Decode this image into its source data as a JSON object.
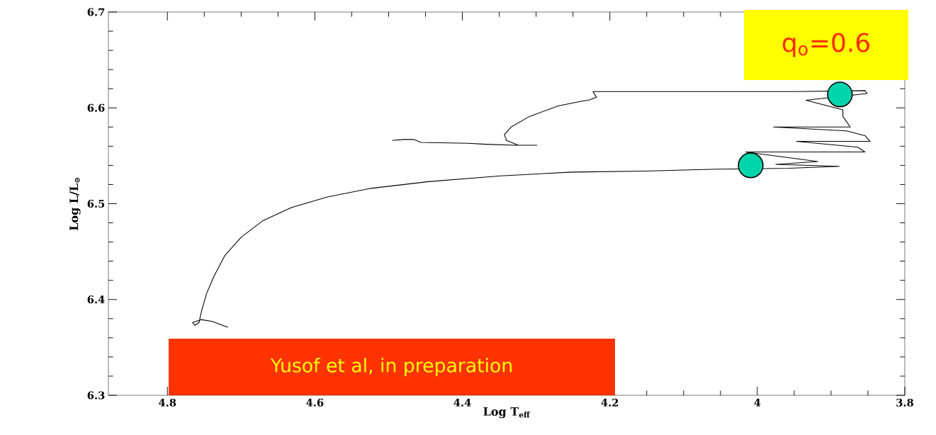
{
  "chart_data": {
    "type": "line",
    "xlabel": "Log T$_{eff}$",
    "ylabel": "Log L/L$_{⊙}$",
    "xlim": [
      4.88,
      3.8
    ],
    "ylim": [
      6.3,
      6.7
    ],
    "xticks": [
      4.8,
      4.6,
      4.4,
      4.2,
      4,
      3.8
    ],
    "yticks": [
      6.3,
      6.4,
      6.5,
      6.6,
      6.7
    ],
    "series": [
      {
        "color": "#000000",
        "x": [
          4.718,
          4.739,
          4.754,
          4.766,
          4.763,
          4.757,
          4.754,
          4.747,
          4.737,
          4.722,
          4.7,
          4.671,
          4.632,
          4.583,
          4.524,
          4.446,
          4.348,
          4.25,
          4.153,
          4.055,
          3.957,
          3.889,
          3.975,
          3.918,
          4.016,
          3.854,
          3.864,
          3.947,
          3.847,
          3.854,
          3.879,
          3.978,
          3.874,
          3.884,
          3.884,
          3.934,
          3.851,
          3.854,
          3.947,
          4.211,
          4.223,
          4.218,
          4.229,
          4.238,
          4.27,
          4.309,
          4.334,
          4.343,
          4.34,
          4.324,
          4.299,
          4.329,
          4.368,
          4.392,
          4.456,
          4.466,
          4.48,
          4.495
        ],
        "values": [
          6.371,
          6.377,
          6.379,
          6.376,
          6.373,
          6.376,
          6.387,
          6.406,
          6.424,
          6.446,
          6.465,
          6.482,
          6.496,
          6.507,
          6.516,
          6.523,
          6.529,
          6.533,
          6.534,
          6.536,
          6.537,
          6.539,
          6.541,
          6.544,
          6.554,
          6.554,
          6.559,
          6.565,
          6.565,
          6.571,
          6.576,
          6.58,
          6.58,
          6.591,
          6.598,
          6.608,
          6.615,
          6.618,
          6.617,
          6.617,
          6.617,
          6.611,
          6.608,
          6.607,
          6.602,
          6.591,
          6.58,
          6.572,
          6.566,
          6.561,
          6.561,
          6.561,
          6.562,
          6.563,
          6.564,
          6.567,
          6.567,
          6.566
        ]
      },
      {
        "type": "scatter",
        "color": "#00d4aa",
        "x": [
          4.009,
          3.888
        ],
        "values": [
          6.54,
          6.614
        ]
      }
    ],
    "annotations": [
      "q$_{o}$=0.6",
      "Yusof et al, in preparation"
    ]
  }
}
